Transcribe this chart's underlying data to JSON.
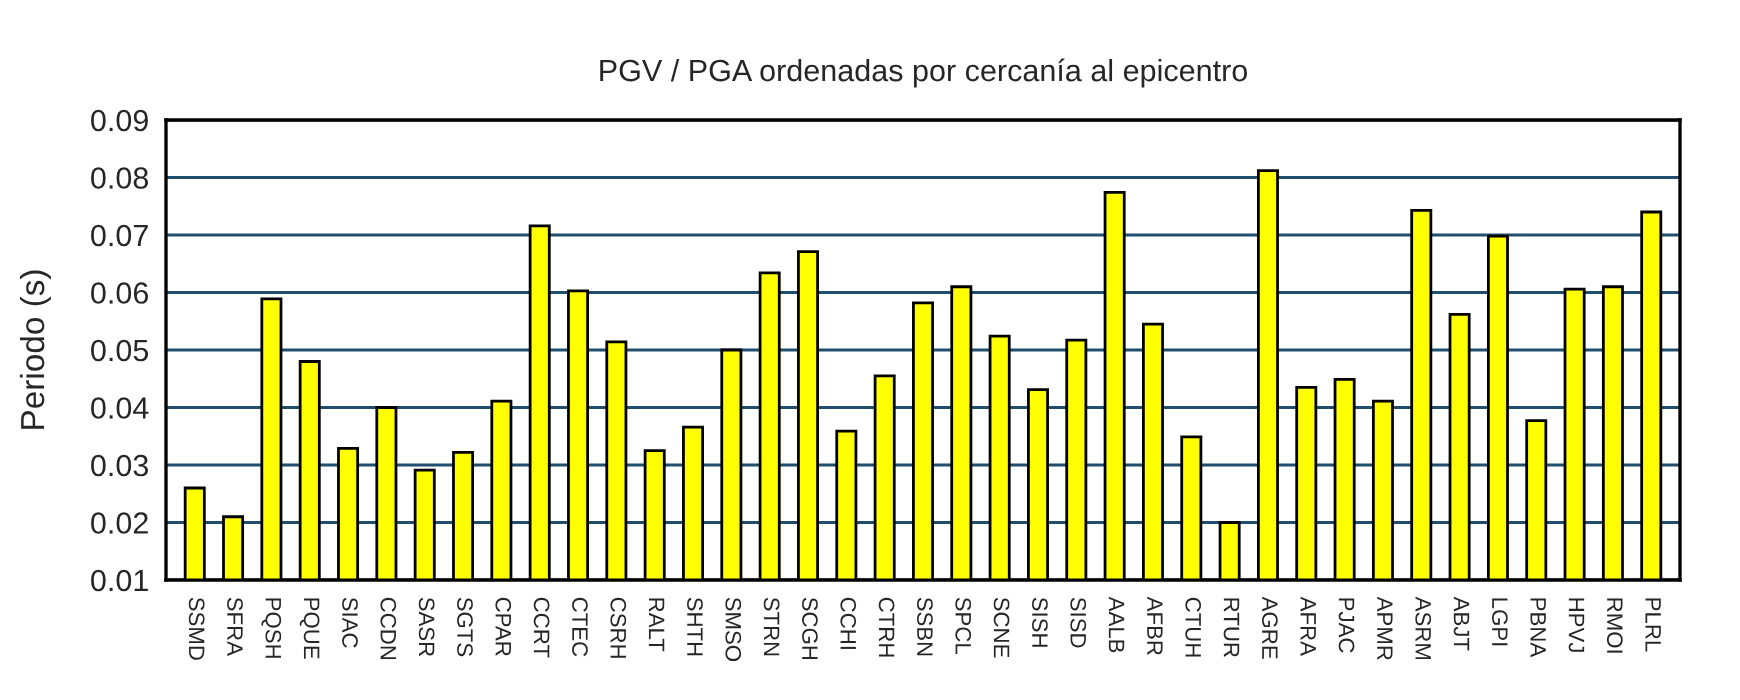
{
  "chart_data": {
    "type": "bar",
    "title": "PGV / PGA ordenadas por cercanía al epicentro",
    "ylabel": "Periodo (s)",
    "categories": [
      "SSMD",
      "SFRA",
      "PQSH",
      "PQUE",
      "SIAC",
      "CCDN",
      "SASR",
      "SGTS",
      "CPAR",
      "CCRT",
      "CTEC",
      "CSRH",
      "RALT",
      "SHTH",
      "SMSO",
      "STRN",
      "SCGH",
      "CCHI",
      "CTRH",
      "SSBN",
      "SPCL",
      "SCNE",
      "SISH",
      "SISD",
      "AALB",
      "AFBR",
      "CTUH",
      "RTUR",
      "AGRE",
      "AFRA",
      "PJAC",
      "APMR",
      "ASRM",
      "ABJT",
      "LGPI",
      "PBNA",
      "HPVJ",
      "RMOI",
      "PLRL"
    ],
    "values": [
      0.026,
      0.021,
      0.0589,
      0.048,
      0.0329,
      0.04,
      0.0291,
      0.0322,
      0.0411,
      0.0716,
      0.0603,
      0.0514,
      0.0325,
      0.0366,
      0.05,
      0.0634,
      0.0671,
      0.0359,
      0.0455,
      0.0582,
      0.061,
      0.0524,
      0.0431,
      0.0517,
      0.0774,
      0.0545,
      0.0349,
      0.02,
      0.0812,
      0.0435,
      0.0449,
      0.0411,
      0.0743,
      0.0562,
      0.0698,
      0.0377,
      0.0606,
      0.061,
      0.074
    ],
    "color": "#ffff00",
    "ylim": [
      0.01,
      0.09
    ],
    "yticks": [
      0.01,
      0.02,
      0.03,
      0.04,
      0.05,
      0.06,
      0.07,
      0.08,
      0.09
    ],
    "grid": "y"
  }
}
